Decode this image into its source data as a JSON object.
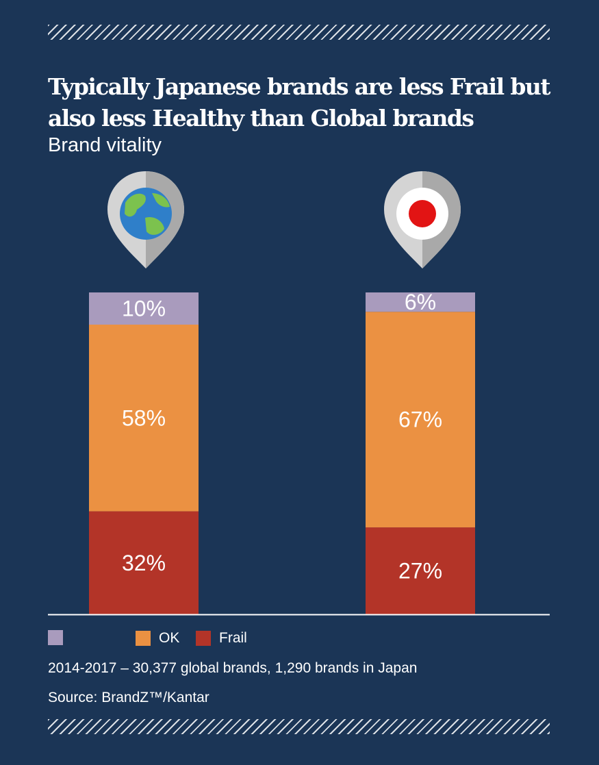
{
  "chart_data": {
    "type": "bar",
    "stacked": true,
    "title": "Typically Japanese brands are less Frail but also less Healthy than Global brands",
    "subtitle": "Brand vitality",
    "categories": [
      "Global",
      "Japan"
    ],
    "category_icons": [
      "globe-icon",
      "japan-flag-icon"
    ],
    "series": [
      {
        "name": "Frail",
        "values": [
          32,
          27
        ],
        "labels": [
          "32%",
          "27%"
        ],
        "color": "#b33428"
      },
      {
        "name": "OK",
        "values": [
          58,
          67
        ],
        "labels": [
          "58%",
          "67%"
        ],
        "color": "#eb9142"
      },
      {
        "name": "",
        "values": [
          10,
          6
        ],
        "labels": [
          "10%",
          "6%"
        ],
        "color": "#a99bbd"
      }
    ],
    "ylim": [
      0,
      100
    ],
    "grid": false,
    "legend": "bottom-left"
  },
  "footer": {
    "note": "2014-2017 – 30,377 global brands, 1,290 brands in Japan",
    "source": "Source: BrandZ™/Kantar"
  },
  "colors": {
    "background": "#1b3556",
    "pin": "#d4d4d4",
    "pin_shade": "#a9a9a9",
    "globe_ocean": "#2f7fc9",
    "globe_land": "#7cc24e",
    "flag_red": "#e21414"
  }
}
